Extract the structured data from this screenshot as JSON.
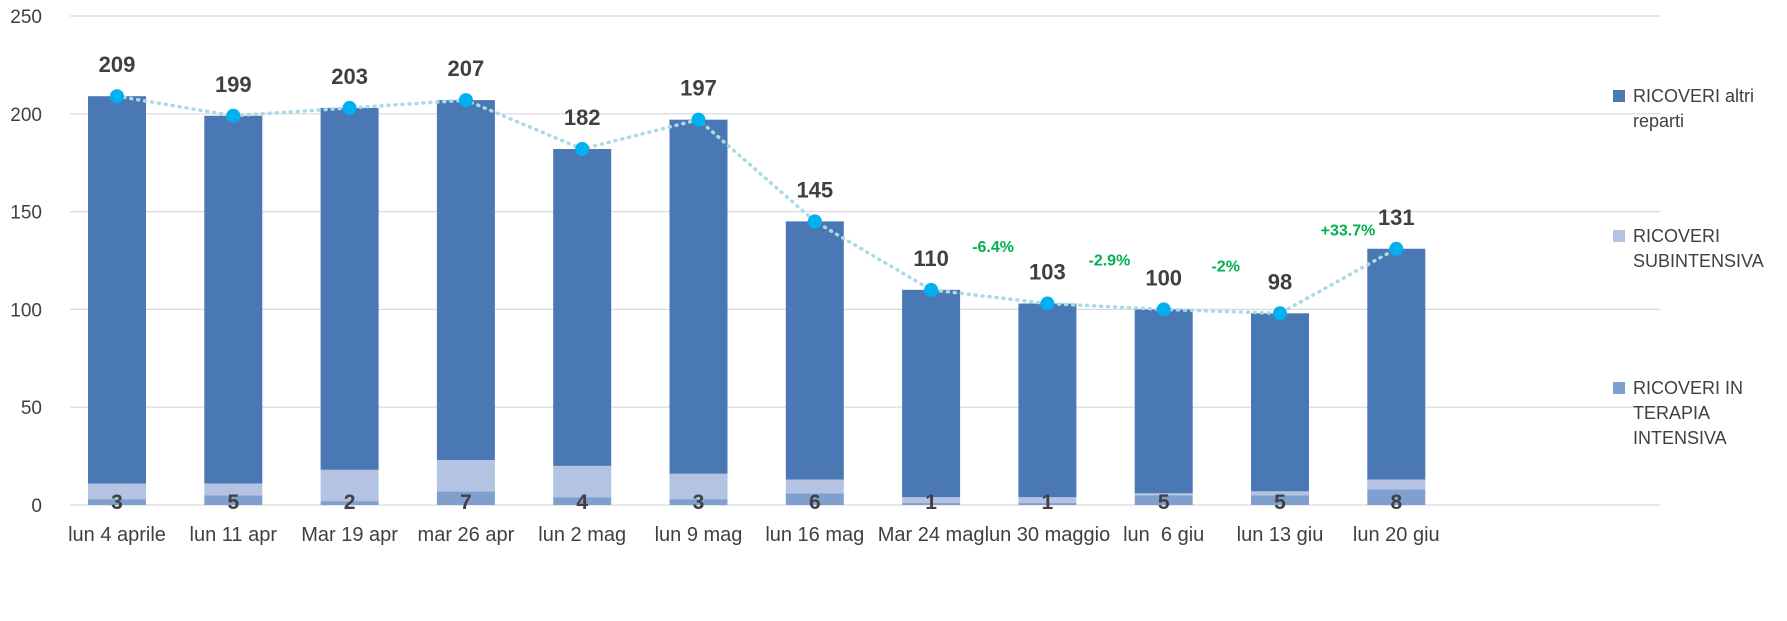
{
  "chart_data": {
    "type": "bar",
    "stacked": true,
    "categories": [
      "lun 4 aprile",
      "lun 11 apr",
      "Mar 19 apr",
      "mar 26 apr",
      "lun 2 mag",
      "lun 9 mag",
      "lun 16 mag",
      "Mar 24 mag",
      "lun 30 maggio",
      "lun  6 giu",
      "lun 13 giu",
      "lun 20 giu"
    ],
    "series": [
      {
        "name": "RICOVERI IN TERAPIA INTENSIVA",
        "color": "#7f9fcf",
        "values": [
          3,
          5,
          2,
          7,
          4,
          3,
          6,
          1,
          1,
          5,
          5,
          8
        ]
      },
      {
        "name": "RICOVERI SUBINTENSIVA",
        "color": "#b4c3e2",
        "values": [
          8,
          6,
          16,
          16,
          16,
          13,
          7,
          3,
          3,
          1,
          2,
          5
        ]
      },
      {
        "name": "RICOVERI altri reparti",
        "color": "#4a78b4",
        "values": [
          198,
          188,
          185,
          184,
          162,
          181,
          132,
          106,
          99,
          94,
          91,
          118
        ]
      }
    ],
    "totals": [
      209,
      199,
      203,
      207,
      182,
      197,
      145,
      110,
      103,
      100,
      98,
      131
    ],
    "trend_line": {
      "color": "#00b0f0",
      "line_color": "#a9dbe6",
      "style": "dotted"
    },
    "change_annotations": [
      {
        "index": 7,
        "text": "-6.4%"
      },
      {
        "index": 8,
        "text": "-2.9%"
      },
      {
        "index": 9,
        "text": "-2%"
      },
      {
        "index": 10,
        "text": "+33.7%"
      }
    ],
    "change_color": "#00b050",
    "yticks": [
      0,
      50,
      100,
      150,
      200,
      250
    ],
    "ylim": [
      0,
      250
    ],
    "grid": true,
    "legend_position": "right",
    "legend_order": [
      "RICOVERI altri reparti",
      "RICOVERI SUBINTENSIVA",
      "RICOVERI IN TERAPIA INTENSIVA"
    ],
    "title": "",
    "xlabel": "",
    "ylabel": ""
  }
}
